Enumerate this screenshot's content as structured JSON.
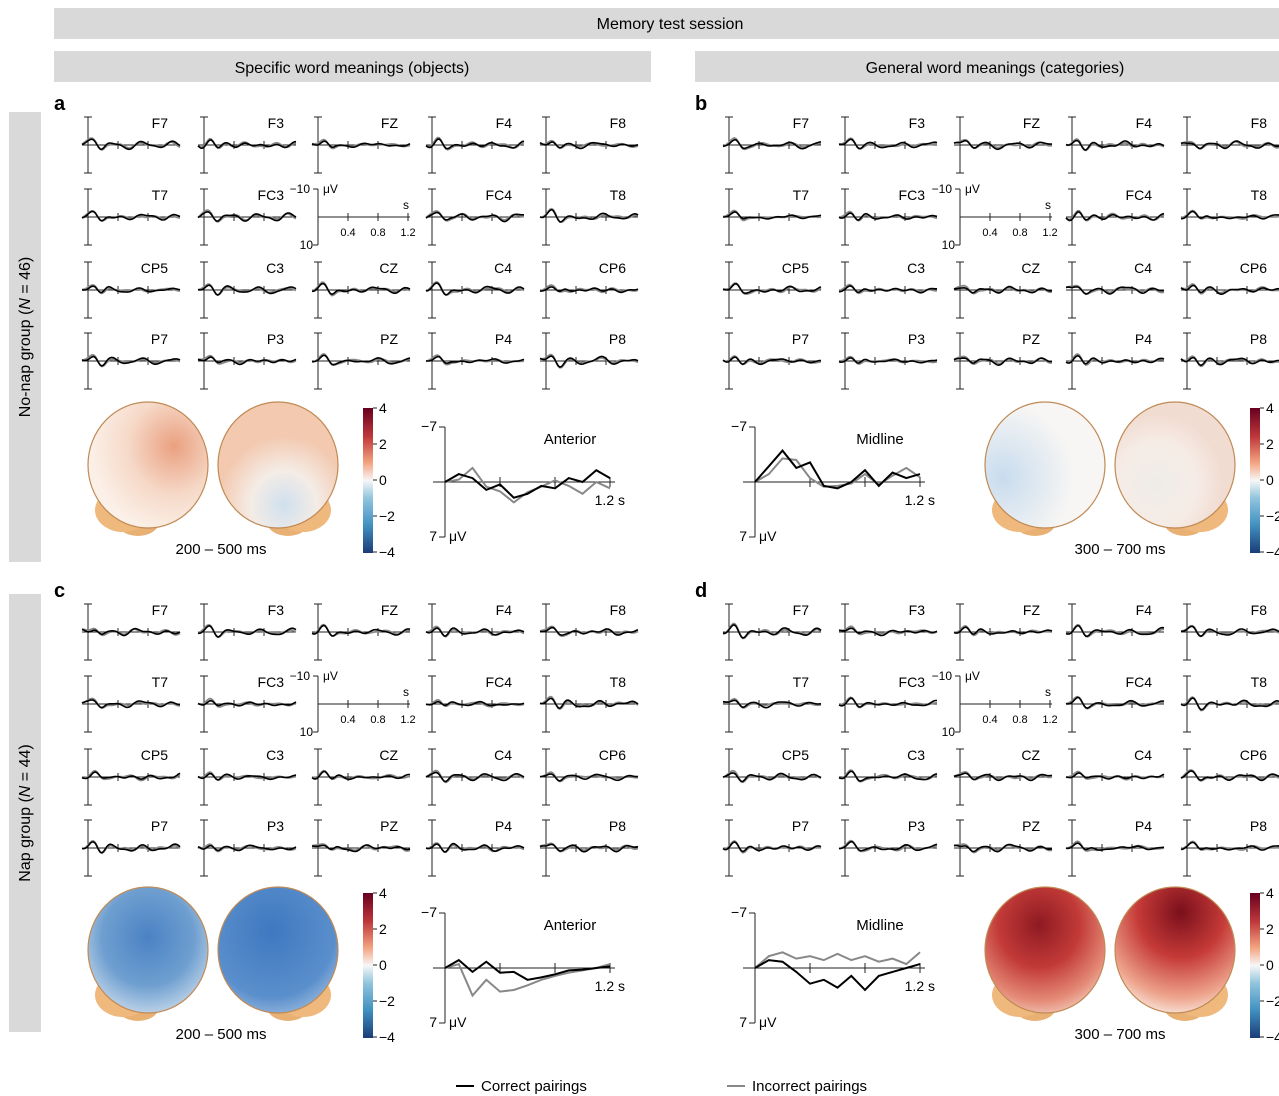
{
  "header": {
    "session": "Memory test session"
  },
  "columns": {
    "left": "Specific word meanings (objects)",
    "right": "General word meanings (categories)"
  },
  "rows": {
    "top": {
      "prefix": "No-nap group (",
      "italic_n": "N",
      "suffix": " = 46)"
    },
    "bottom": {
      "prefix": "Nap group (",
      "italic_n": "N",
      "suffix": " = 44)"
    }
  },
  "panels": [
    "a",
    "b",
    "c",
    "d"
  ],
  "legend": {
    "correct": "Correct pairings",
    "incorrect": "Incorrect pairings"
  },
  "colors": {
    "correct": "#000000",
    "incorrect": "#888888",
    "header_bg": "#d9d9d9",
    "head_outline": "#c08a55",
    "face_skin": "#e9b074"
  },
  "scale_labels": {
    "top": "−10",
    "unit": "μV",
    "bottom": "10",
    "s": "s",
    "ticks": [
      "0.4",
      "0.8",
      "1.2"
    ]
  },
  "colorbar": {
    "ticks": [
      "4",
      "2",
      "0",
      "−2",
      "−4"
    ]
  },
  "chart_data": [
    {
      "panel": "a",
      "type": "line",
      "electrodes": [
        [
          "F7",
          "F3",
          "FZ",
          "F4",
          "F8"
        ],
        [
          "T7",
          "FC3",
          "",
          "FC4",
          "T8"
        ],
        [
          "CP5",
          "C3",
          "CZ",
          "C4",
          "CP6"
        ],
        [
          "P7",
          "P3",
          "PZ",
          "P4",
          "P8"
        ]
      ],
      "x_range_s": [
        -0.1,
        1.2
      ],
      "y_range_uV": [
        -10,
        10
      ],
      "y_inverted": true,
      "series": [
        {
          "name": "Correct pairings",
          "color": "black"
        },
        {
          "name": "Incorrect pairings",
          "color": "gray"
        }
      ],
      "topomap": {
        "window": "200 – 500 ms",
        "range_uV": [
          -4,
          4
        ],
        "pattern": "positive (red) over centro-parietal"
      },
      "roi": {
        "label": "Anterior",
        "y_top": "−7",
        "y_bottom": "7",
        "x_end": "1.2 s",
        "unit": "μV",
        "x": [
          0,
          0.1,
          0.2,
          0.3,
          0.4,
          0.5,
          0.6,
          0.7,
          0.8,
          0.9,
          1.0,
          1.1,
          1.2
        ],
        "correct": [
          0,
          -1.0,
          -0.5,
          1.0,
          0.3,
          2.0,
          1.5,
          0.5,
          0.8,
          -0.5,
          0.0,
          -1.5,
          -0.5
        ],
        "incorrect": [
          0,
          -0.3,
          -1.8,
          0.6,
          1.2,
          2.6,
          1.3,
          0.6,
          -0.2,
          0.5,
          1.5,
          0.0,
          0.8
        ]
      }
    },
    {
      "panel": "b",
      "type": "line",
      "electrodes": [
        [
          "F7",
          "F3",
          "FZ",
          "F4",
          "F8"
        ],
        [
          "T7",
          "FC3",
          "",
          "FC4",
          "T8"
        ],
        [
          "CP5",
          "C3",
          "CZ",
          "C4",
          "CP6"
        ],
        [
          "P7",
          "P3",
          "PZ",
          "P4",
          "P8"
        ]
      ],
      "x_range_s": [
        -0.1,
        1.2
      ],
      "y_range_uV": [
        -10,
        10
      ],
      "y_inverted": true,
      "series": [
        {
          "name": "Correct pairings",
          "color": "black"
        },
        {
          "name": "Incorrect pairings",
          "color": "gray"
        }
      ],
      "topomap": {
        "window": "300 – 700 ms",
        "range_uV": [
          -4,
          4
        ],
        "pattern": "near zero, slight negative (blue) left"
      },
      "roi": {
        "label": "Midline",
        "y_top": "−7",
        "y_bottom": "7",
        "x_end": "1.2 s",
        "unit": "μV",
        "x": [
          0,
          0.1,
          0.2,
          0.3,
          0.4,
          0.5,
          0.6,
          0.7,
          0.8,
          0.9,
          1.0,
          1.1,
          1.2
        ],
        "correct": [
          0,
          -2.0,
          -4.0,
          -1.8,
          -2.5,
          0.5,
          0.8,
          0.0,
          -1.5,
          0.5,
          -1.2,
          -0.5,
          -1.0
        ],
        "incorrect": [
          0,
          -1.0,
          -3.0,
          -2.8,
          -0.5,
          0.6,
          0.5,
          0.2,
          -1.0,
          0.3,
          -0.8,
          -1.8,
          -0.6
        ]
      }
    },
    {
      "panel": "c",
      "type": "line",
      "electrodes": [
        [
          "F7",
          "F3",
          "FZ",
          "F4",
          "F8"
        ],
        [
          "T7",
          "FC3",
          "",
          "FC4",
          "T8"
        ],
        [
          "CP5",
          "C3",
          "CZ",
          "C4",
          "CP6"
        ],
        [
          "P7",
          "P3",
          "PZ",
          "P4",
          "P8"
        ]
      ],
      "x_range_s": [
        -0.1,
        1.2
      ],
      "y_range_uV": [
        -10,
        10
      ],
      "y_inverted": true,
      "series": [
        {
          "name": "Correct pairings",
          "color": "black"
        },
        {
          "name": "Incorrect pairings",
          "color": "gray"
        }
      ],
      "topomap": {
        "window": "200 – 500 ms",
        "range_uV": [
          -4,
          4
        ],
        "pattern": "negative (blue) widespread"
      },
      "roi": {
        "label": "Anterior",
        "y_top": "−7",
        "y_bottom": "7",
        "x_end": "1.2 s",
        "unit": "μV",
        "x": [
          0,
          0.1,
          0.2,
          0.3,
          0.4,
          0.5,
          0.6,
          0.7,
          0.8,
          0.9,
          1.0,
          1.1,
          1.2
        ],
        "correct": [
          0,
          -1.0,
          0.5,
          -0.8,
          0.6,
          0.5,
          1.5,
          1.2,
          0.8,
          0.3,
          0.2,
          0.0,
          -0.2
        ],
        "incorrect": [
          0,
          -0.5,
          3.5,
          1.5,
          3.0,
          2.8,
          2.2,
          1.5,
          1.0,
          0.6,
          0.3,
          0.0,
          -0.5
        ]
      }
    },
    {
      "panel": "d",
      "type": "line",
      "electrodes": [
        [
          "F7",
          "F3",
          "FZ",
          "F4",
          "F8"
        ],
        [
          "T7",
          "FC3",
          "",
          "FC4",
          "T8"
        ],
        [
          "CP5",
          "C3",
          "CZ",
          "C4",
          "CP6"
        ],
        [
          "P7",
          "P3",
          "PZ",
          "P4",
          "P8"
        ]
      ],
      "x_range_s": [
        -0.1,
        1.2
      ],
      "y_range_uV": [
        -10,
        10
      ],
      "y_inverted": true,
      "series": [
        {
          "name": "Correct pairings",
          "color": "black"
        },
        {
          "name": "Incorrect pairings",
          "color": "gray"
        }
      ],
      "topomap": {
        "window": "300 – 700 ms",
        "range_uV": [
          -4,
          4
        ],
        "pattern": "positive (red) widespread"
      },
      "roi": {
        "label": "Midline",
        "y_top": "−7",
        "y_bottom": "7",
        "x_end": "1.2 s",
        "unit": "μV",
        "x": [
          0,
          0.1,
          0.2,
          0.3,
          0.4,
          0.5,
          0.6,
          0.7,
          0.8,
          0.9,
          1.0,
          1.1,
          1.2
        ],
        "correct": [
          0,
          -1.0,
          -0.8,
          0.5,
          2.0,
          1.5,
          2.5,
          1.0,
          2.8,
          1.0,
          0.5,
          0.0,
          -0.5
        ],
        "incorrect": [
          0,
          -1.5,
          -2.0,
          -1.2,
          -1.5,
          -1.0,
          -1.8,
          -1.0,
          -1.5,
          -0.8,
          -1.2,
          -0.5,
          -2.0
        ]
      }
    }
  ]
}
